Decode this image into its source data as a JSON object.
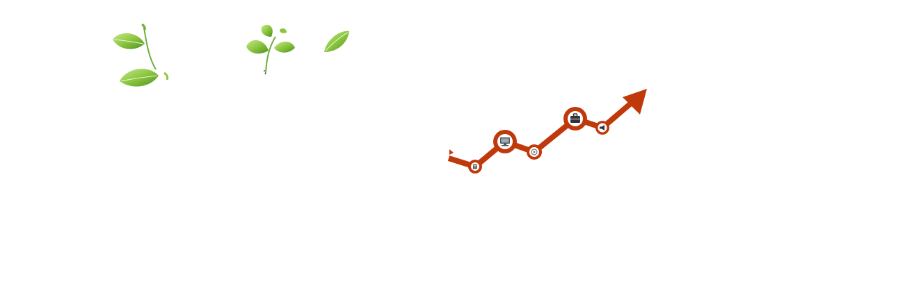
{
  "palette": {
    "leaf_light": "#8cc63f",
    "leaf_dark": "#5a9a2a",
    "leaf_highlight": "#c5e88a",
    "stem": "#6fae3a",
    "arrow": "#c0390b",
    "node_fill": "#ffffff",
    "icon": "#555555"
  },
  "icons": {
    "node_1": "document-icon",
    "node_2": "monitor-icon",
    "node_3": "target-icon",
    "node_4": "briefcase-icon",
    "node_5": "megaphone-icon"
  }
}
